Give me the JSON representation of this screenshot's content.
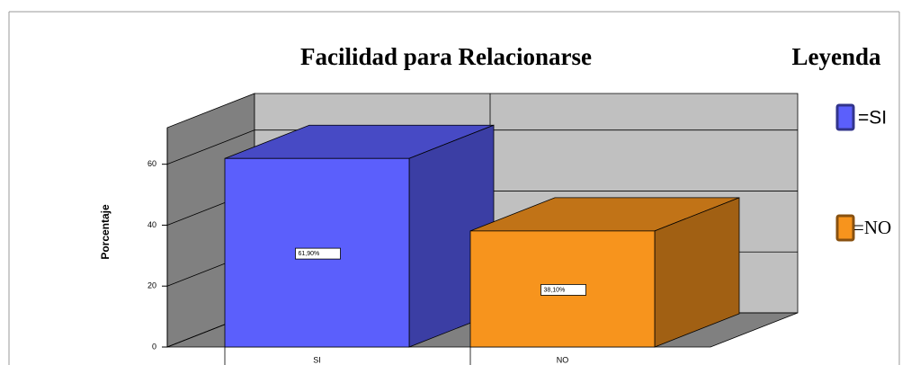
{
  "chart_data": {
    "type": "bar3d",
    "title": "Facilidad para Relacionarse",
    "y_label": "Porcentaje",
    "categories": [
      "SI",
      "NO"
    ],
    "values": [
      61.9,
      38.1
    ],
    "value_labels": [
      "61,90%",
      "38,10%"
    ],
    "colors": [
      "#5b5ffc",
      "#f7941d"
    ],
    "ylim": [
      0,
      72
    ],
    "yticks": [
      0,
      20,
      40,
      60
    ],
    "grid": true,
    "legend": {
      "title": "Leyenda",
      "entries": [
        "=SI",
        "=NO"
      ]
    }
  }
}
